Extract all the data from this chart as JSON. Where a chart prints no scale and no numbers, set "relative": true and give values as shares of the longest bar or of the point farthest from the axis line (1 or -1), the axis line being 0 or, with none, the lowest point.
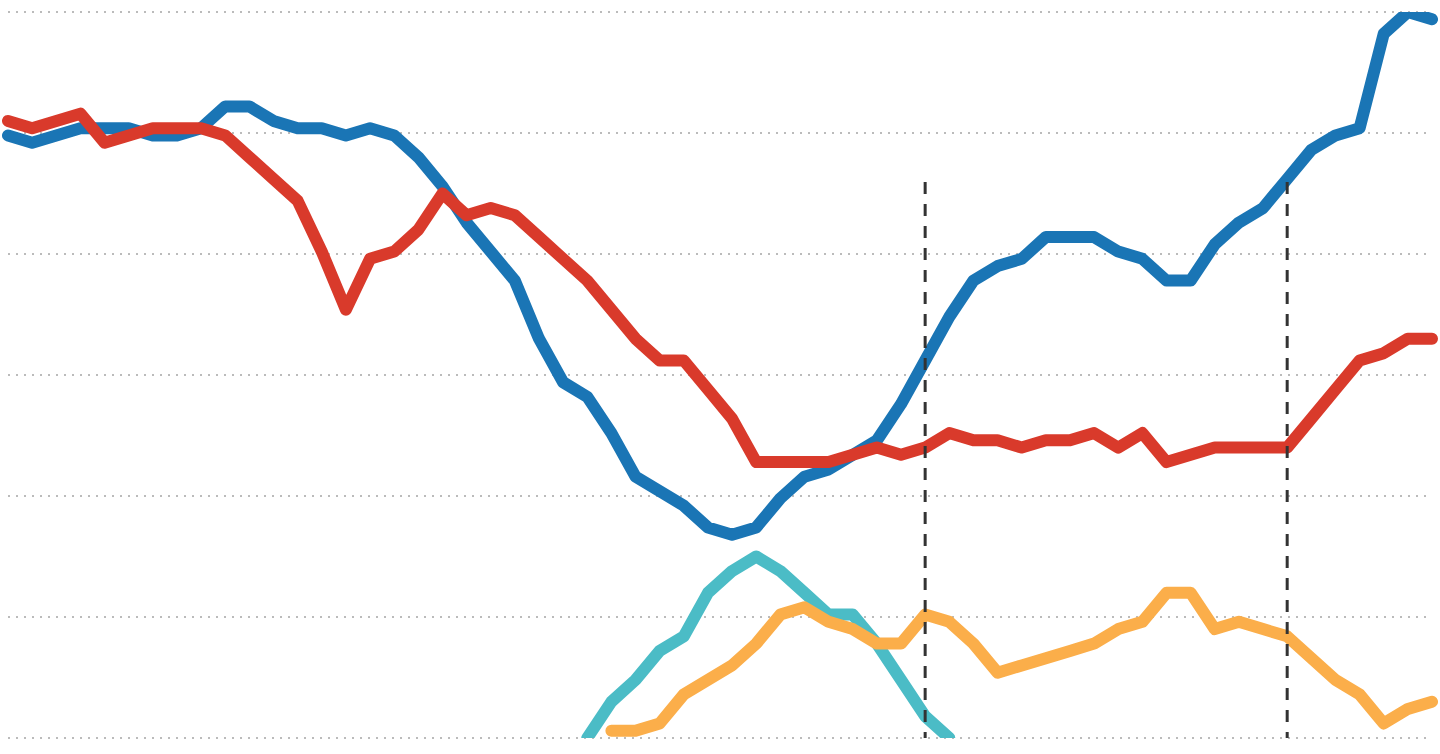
{
  "chart_data": {
    "type": "line",
    "relative": true,
    "grid": "y",
    "legend": false,
    "marker": "none",
    "categories": [
      null,
      null,
      null,
      null,
      null,
      null,
      null,
      null,
      null,
      null,
      null,
      null,
      null,
      null,
      null,
      null,
      null,
      null,
      null,
      null,
      null,
      null,
      null,
      null,
      null,
      null,
      null,
      null,
      null,
      null,
      null,
      null,
      null,
      null,
      null,
      null,
      null,
      null,
      null,
      null,
      null,
      null,
      null,
      null,
      null,
      null,
      null,
      null,
      null,
      null,
      null,
      null,
      null,
      null,
      null,
      null,
      null,
      null,
      null,
      null
    ],
    "series": [
      {
        "color": "#1a75b5",
        "values": [
          0.83,
          0.82,
          0.83,
          0.84,
          0.84,
          0.84,
          0.83,
          0.83,
          0.84,
          0.87,
          0.87,
          0.85,
          0.84,
          0.84,
          0.83,
          0.84,
          0.83,
          0.8,
          0.76,
          0.71,
          0.67,
          0.63,
          0.55,
          0.49,
          0.47,
          0.42,
          0.36,
          0.34,
          0.32,
          0.29,
          0.28,
          0.29,
          0.33,
          0.36,
          0.37,
          0.39,
          0.41,
          0.46,
          0.52,
          0.58,
          0.63,
          0.65,
          0.66,
          0.69,
          0.69,
          0.69,
          0.67,
          0.66,
          0.63,
          0.63,
          0.68,
          0.71,
          0.73,
          0.77,
          0.81,
          0.83,
          0.84,
          0.97,
          1,
          0.99
        ]
      },
      {
        "color": "#d93a2b",
        "values": [
          0.85,
          0.84,
          0.85,
          0.86,
          0.82,
          0.83,
          0.84,
          0.84,
          0.84,
          0.83,
          0.8,
          0.77,
          0.74,
          0.67,
          0.59,
          0.66,
          0.67,
          0.7,
          0.75,
          0.72,
          0.73,
          0.72,
          0.69,
          0.66,
          0.63,
          0.59,
          0.55,
          0.52,
          0.52,
          0.48,
          0.44,
          0.38,
          0.38,
          0.38,
          0.38,
          0.39,
          0.4,
          0.39,
          0.4,
          0.42,
          0.41,
          0.41,
          0.4,
          0.41,
          0.41,
          0.42,
          0.4,
          0.42,
          0.38,
          0.39,
          0.4,
          0.4,
          0.4,
          0.4,
          0.44,
          0.48,
          0.52,
          0.53,
          0.55,
          0.55
        ]
      },
      {
        "color": "#4bbcc6",
        "values": [
          null,
          null,
          null,
          null,
          null,
          null,
          null,
          null,
          null,
          null,
          null,
          null,
          null,
          null,
          null,
          null,
          null,
          null,
          null,
          null,
          null,
          null,
          null,
          null,
          0,
          0.05,
          0.08,
          0.12,
          0.14,
          0.2,
          0.23,
          0.25,
          0.23,
          0.2,
          0.17,
          0.17,
          0.13,
          0.08,
          0.03,
          0,
          null,
          null,
          null,
          null,
          null,
          null,
          null,
          null,
          null,
          null,
          null,
          null,
          null,
          null,
          null,
          null,
          null,
          null,
          null,
          null
        ]
      },
      {
        "color": "#fbae4a",
        "values": [
          null,
          null,
          null,
          null,
          null,
          null,
          null,
          null,
          null,
          null,
          null,
          null,
          null,
          null,
          null,
          null,
          null,
          null,
          null,
          null,
          null,
          null,
          null,
          null,
          null,
          0.01,
          0.01,
          0.02,
          0.06,
          0.08,
          0.1,
          0.13,
          0.17,
          0.18,
          0.16,
          0.15,
          0.13,
          0.13,
          0.17,
          0.16,
          0.13,
          0.09,
          0.1,
          0.11,
          0.12,
          0.13,
          0.15,
          0.16,
          0.2,
          0.2,
          0.15,
          0.16,
          0.15,
          0.14,
          0.11,
          0.08,
          0.06,
          0.02,
          0.04,
          0.05
        ]
      }
    ]
  }
}
